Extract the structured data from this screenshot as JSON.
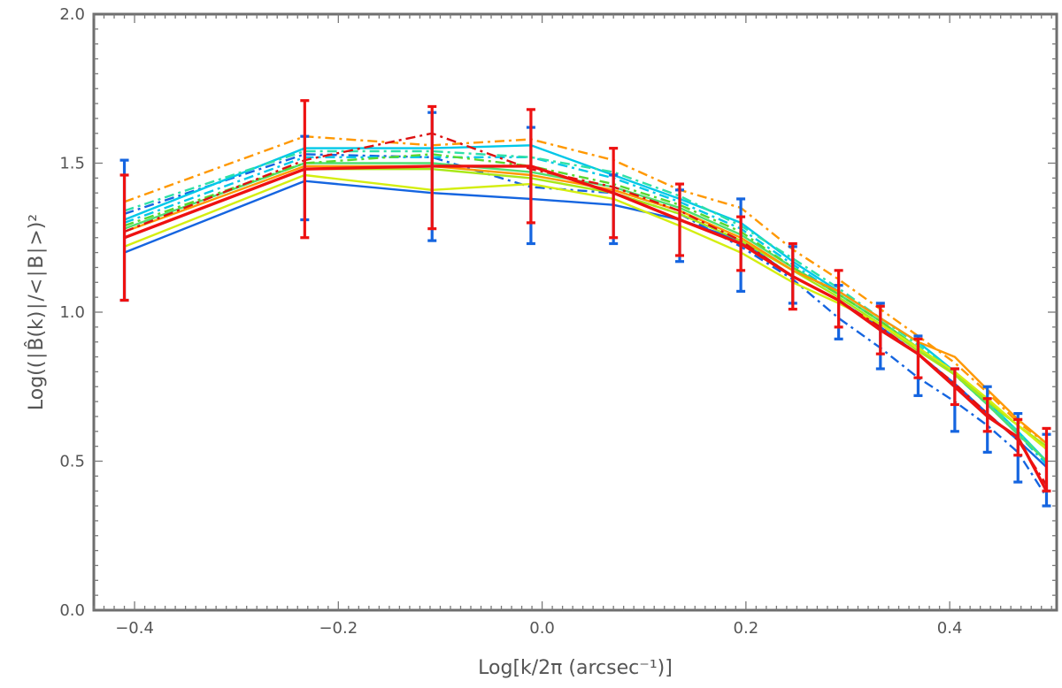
{
  "chart_data": {
    "type": "line",
    "title": "",
    "xlabel": "Log[k/2π (arcsec⁻¹)]",
    "ylabel": "Log((∣B̂(k)∣/<∣B∣>)²",
    "xlim": [
      -0.44,
      0.505
    ],
    "ylim": [
      0.0,
      2.0
    ],
    "x_ticks": [
      -0.4,
      -0.2,
      0.0,
      0.2,
      0.4
    ],
    "x_tick_labels": [
      "-0.4",
      "-0.2",
      "0.0",
      "0.2",
      "0.4"
    ],
    "y_ticks": [
      0.0,
      0.5,
      1.0,
      1.5,
      2.0
    ],
    "y_tick_labels": [
      "0.0",
      "0.5",
      "1.0",
      "1.5",
      "2.0"
    ],
    "grid": false,
    "legend": "none",
    "x": [
      -0.41,
      -0.233,
      -0.108,
      -0.011,
      0.07,
      0.135,
      0.195,
      0.246,
      0.291,
      0.332,
      0.369,
      0.405,
      0.437,
      0.467,
      0.495
    ],
    "series": [
      {
        "color": "#1565e0",
        "style": "solid",
        "values": [
          1.2,
          1.44,
          1.4,
          1.38,
          1.36,
          1.31,
          1.24,
          1.12,
          1.04,
          0.95,
          0.86,
          0.76,
          0.66,
          0.57,
          0.48
        ]
      },
      {
        "color": "#1565e0",
        "style": "dashdot",
        "values": [
          1.33,
          1.53,
          1.52,
          1.42,
          1.4,
          1.33,
          1.22,
          1.11,
          0.98,
          0.88,
          0.78,
          0.7,
          0.62,
          0.53,
          0.38
        ]
      },
      {
        "color": "#00c8e8",
        "style": "solid",
        "values": [
          1.31,
          1.55,
          1.55,
          1.56,
          1.46,
          1.38,
          1.3,
          1.17,
          1.07,
          0.98,
          0.9,
          0.8,
          0.7,
          0.6,
          0.5
        ]
      },
      {
        "color": "#00c8e8",
        "style": "dashdot",
        "values": [
          1.3,
          1.52,
          1.52,
          1.52,
          1.45,
          1.37,
          1.28,
          1.16,
          1.06,
          0.97,
          0.88,
          0.79,
          0.69,
          0.59,
          0.49
        ]
      },
      {
        "color": "#2ee0a8",
        "style": "dashdot",
        "values": [
          1.34,
          1.54,
          1.54,
          1.52,
          1.47,
          1.39,
          1.29,
          1.18,
          1.08,
          0.98,
          0.89,
          0.8,
          0.7,
          0.6,
          0.5
        ]
      },
      {
        "color": "#4ee070",
        "style": "solid",
        "values": [
          1.28,
          1.5,
          1.5,
          1.47,
          1.42,
          1.35,
          1.26,
          1.15,
          1.06,
          0.97,
          0.88,
          0.79,
          0.69,
          0.59,
          0.5
        ]
      },
      {
        "color": "#58d830",
        "style": "dashdot",
        "values": [
          1.29,
          1.5,
          1.53,
          1.49,
          1.43,
          1.36,
          1.27,
          1.15,
          1.06,
          0.97,
          0.88,
          0.8,
          0.7,
          0.62,
          0.54
        ]
      },
      {
        "color": "#a8e818",
        "style": "solid",
        "values": [
          1.25,
          1.48,
          1.48,
          1.45,
          1.4,
          1.33,
          1.24,
          1.14,
          1.05,
          0.96,
          0.87,
          0.79,
          0.7,
          0.62,
          0.55
        ]
      },
      {
        "color": "#d4ee10",
        "style": "solid",
        "values": [
          1.22,
          1.46,
          1.41,
          1.43,
          1.38,
          1.29,
          1.2,
          1.1,
          1.03,
          0.96,
          0.88,
          0.8,
          0.71,
          0.62,
          0.54
        ]
      },
      {
        "color": "#ff9800",
        "style": "dashdot",
        "values": [
          1.37,
          1.59,
          1.56,
          1.58,
          1.51,
          1.41,
          1.35,
          1.21,
          1.11,
          1.01,
          0.92,
          0.83,
          0.73,
          0.63,
          0.56
        ]
      },
      {
        "color": "#ff9800",
        "style": "solid",
        "values": [
          1.27,
          1.49,
          1.49,
          1.46,
          1.41,
          1.34,
          1.25,
          1.14,
          1.07,
          0.98,
          0.9,
          0.85,
          0.74,
          0.64,
          0.56
        ]
      },
      {
        "color": "#dd1111",
        "style": "dashdot",
        "values": [
          1.27,
          1.51,
          1.6,
          1.48,
          1.42,
          1.34,
          1.24,
          1.12,
          1.04,
          0.95,
          0.86,
          0.76,
          0.66,
          0.57,
          0.42
        ]
      },
      {
        "color": "#ee1111",
        "style": "solid",
        "width": 3.4,
        "values": [
          1.25,
          1.48,
          1.49,
          1.49,
          1.4,
          1.31,
          1.23,
          1.12,
          1.04,
          0.94,
          0.86,
          0.75,
          0.65,
          0.58,
          0.4
        ]
      }
    ],
    "error_bars": [
      {
        "color": "#1565e0",
        "x": [
          -0.41,
          -0.233,
          -0.108,
          -0.011,
          0.07,
          0.135,
          0.195,
          0.246,
          0.291,
          0.332,
          0.369,
          0.405,
          0.437,
          0.467,
          0.495
        ],
        "low": [
          1.04,
          1.31,
          1.24,
          1.23,
          1.23,
          1.17,
          1.07,
          1.03,
          0.91,
          0.81,
          0.72,
          0.6,
          0.53,
          0.43,
          0.35
        ],
        "high": [
          1.51,
          1.59,
          1.67,
          1.62,
          1.46,
          1.41,
          1.38,
          1.22,
          1.09,
          1.03,
          0.92,
          0.81,
          0.75,
          0.66,
          0.59
        ]
      },
      {
        "color": "#ee1111",
        "x": [
          -0.41,
          -0.233,
          -0.108,
          -0.011,
          0.07,
          0.135,
          0.195,
          0.246,
          0.291,
          0.332,
          0.369,
          0.405,
          0.437,
          0.467,
          0.495
        ],
        "low": [
          1.04,
          1.25,
          1.28,
          1.3,
          1.25,
          1.19,
          1.14,
          1.01,
          0.95,
          0.86,
          0.78,
          0.69,
          0.6,
          0.52,
          0.4
        ],
        "high": [
          1.46,
          1.71,
          1.69,
          1.68,
          1.55,
          1.43,
          1.32,
          1.23,
          1.14,
          1.02,
          0.91,
          0.81,
          0.71,
          0.64,
          0.61
        ]
      }
    ]
  }
}
